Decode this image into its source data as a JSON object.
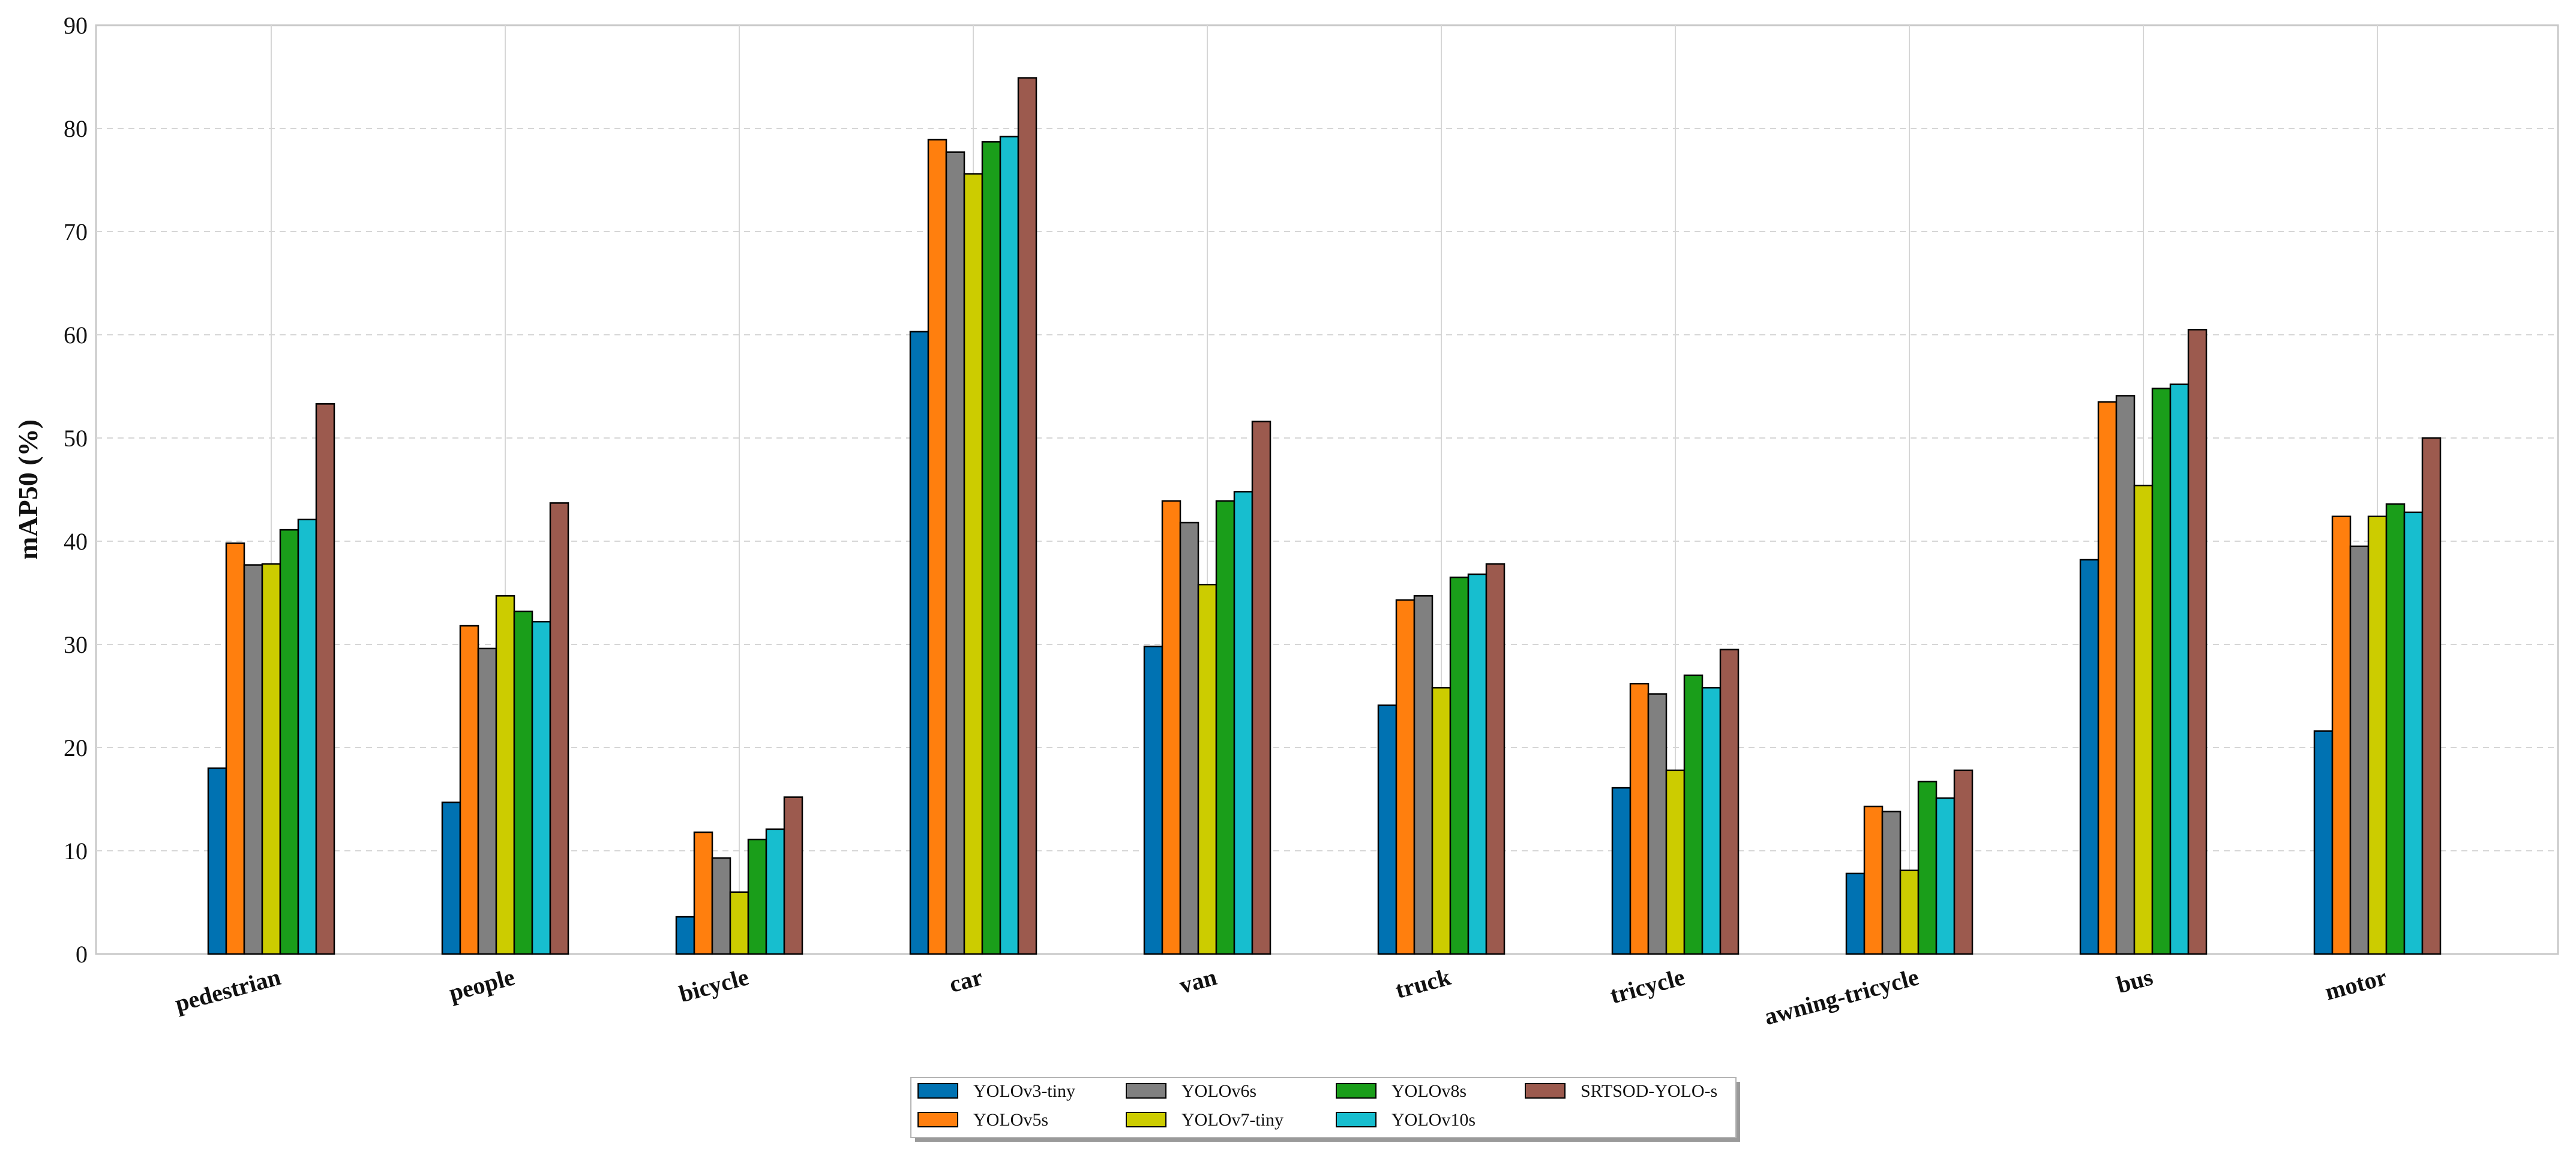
{
  "chart_data": {
    "type": "bar",
    "title": "",
    "xlabel": "",
    "ylabel": "mAP50 (%)",
    "ylim": [
      0,
      90
    ],
    "yticks": [
      0,
      10,
      20,
      30,
      40,
      50,
      60,
      70,
      80,
      90
    ],
    "grid": true,
    "legend_position": "bottom-center",
    "categories": [
      "pedestrian",
      "people",
      "bicycle",
      "car",
      "van",
      "truck",
      "tricycle",
      "awning-tricycle",
      "bus",
      "motor"
    ],
    "series": [
      {
        "name": "YOLOv3-tiny",
        "color": "#0072b2",
        "values": [
          18.0,
          14.7,
          3.6,
          60.3,
          29.8,
          24.1,
          16.1,
          7.8,
          38.2,
          21.6
        ]
      },
      {
        "name": "YOLOv5s",
        "color": "#ff7f0e",
        "values": [
          39.8,
          31.8,
          11.8,
          78.9,
          43.9,
          34.3,
          26.2,
          14.3,
          53.5,
          42.4
        ]
      },
      {
        "name": "YOLOv6s",
        "color": "#808080",
        "values": [
          37.7,
          29.6,
          9.3,
          77.7,
          41.8,
          34.7,
          25.2,
          13.8,
          54.1,
          39.5
        ]
      },
      {
        "name": "YOLOv7-tiny",
        "color": "#cccc00",
        "values": [
          37.8,
          34.7,
          6.0,
          75.6,
          35.8,
          25.8,
          17.8,
          8.1,
          45.4,
          42.4
        ]
      },
      {
        "name": "YOLOv8s",
        "color": "#1a9e1a",
        "values": [
          41.1,
          33.2,
          11.1,
          78.7,
          43.9,
          36.5,
          27.0,
          16.7,
          54.8,
          43.6
        ]
      },
      {
        "name": "YOLOv10s",
        "color": "#17becf",
        "values": [
          42.1,
          32.2,
          12.1,
          79.2,
          44.8,
          36.8,
          25.8,
          15.1,
          55.2,
          42.8
        ]
      },
      {
        "name": "SRTSOD-YOLO-s",
        "color": "#9c5a4e",
        "values": [
          53.3,
          43.7,
          15.2,
          84.9,
          51.6,
          37.8,
          29.5,
          17.8,
          60.5,
          50.0
        ]
      }
    ]
  }
}
